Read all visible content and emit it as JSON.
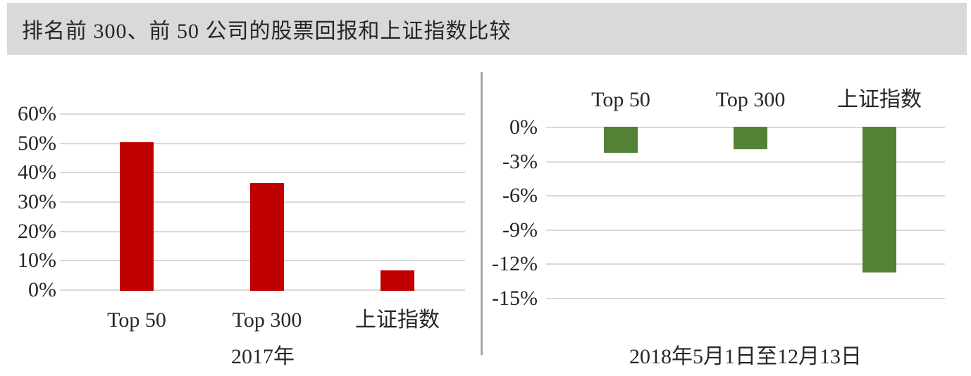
{
  "header": {
    "title": "排名前 300、前 50 公司的股票回报和上证指数比较"
  },
  "chart_data": [
    {
      "type": "bar",
      "panel": "left",
      "categories": [
        "Top 50",
        "Top 300",
        "上证指数"
      ],
      "values": [
        50.3,
        36.6,
        6.8
      ],
      "xlabel": "2017年",
      "ylabel": "",
      "ylim": [
        0,
        60
      ],
      "ytick_step": 10,
      "yticks": [
        {
          "value": 60,
          "label": "60%"
        },
        {
          "value": 50,
          "label": "50%"
        },
        {
          "value": 40,
          "label": "40%"
        },
        {
          "value": 30,
          "label": "30%"
        },
        {
          "value": 20,
          "label": "20%"
        },
        {
          "value": 10,
          "label": "10%"
        },
        {
          "value": 0,
          "label": "0%"
        }
      ],
      "bar_color": "#c00000",
      "grid": true,
      "legend": "none",
      "category_label_position": "bottom"
    },
    {
      "type": "bar",
      "panel": "right",
      "categories": [
        "Top 50",
        "Top 300",
        "上证指数"
      ],
      "values": [
        -2.2,
        -1.9,
        -12.7
      ],
      "xlabel": "2018年5月1日至12月13日",
      "ylabel": "",
      "ylim": [
        -15,
        0
      ],
      "ytick_step": 3,
      "yticks": [
        {
          "value": 0,
          "label": "0%"
        },
        {
          "value": -3,
          "label": "-3%"
        },
        {
          "value": -6,
          "label": "-6%"
        },
        {
          "value": -9,
          "label": "-9%"
        },
        {
          "value": -12,
          "label": "-12%"
        },
        {
          "value": -15,
          "label": "-15%"
        }
      ],
      "bar_color": "#538135",
      "grid": true,
      "legend": "none",
      "category_label_position": "top"
    }
  ],
  "colors": {
    "header_bg": "#d9d9d9",
    "gridline": "#d9d9d9",
    "divider": "#a6a6a6",
    "text": "#262626",
    "bar_red": "#c00000",
    "bar_green": "#538135"
  }
}
